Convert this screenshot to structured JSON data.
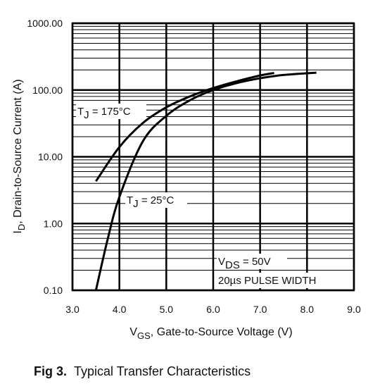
{
  "chart_data": {
    "type": "line",
    "xlabel": {
      "main": "V",
      "sub": "GS",
      "rest": ", Gate-to-Source Voltage (V)"
    },
    "ylabel": {
      "main": "I",
      "sub": "D",
      "rest": ", Drain-to-Source Current (A)"
    },
    "caption": {
      "bold": "Fig 3.",
      "text": "Typical Transfer Characteristics"
    },
    "log_y": true,
    "grid": true,
    "xlim": [
      3,
      9
    ],
    "xticks": [
      {
        "value": 3,
        "label": "3.0"
      },
      {
        "value": 4,
        "label": "4.0"
      },
      {
        "value": 5,
        "label": "5.0"
      },
      {
        "value": 6,
        "label": "6.0"
      },
      {
        "value": 7,
        "label": "7.0"
      },
      {
        "value": 8,
        "label": "8.0"
      },
      {
        "value": 9,
        "label": "9.0"
      }
    ],
    "ylim": [
      0.1,
      1000
    ],
    "yticks": [
      {
        "value": 0.1,
        "label": "0.10"
      },
      {
        "value": 1,
        "label": "1.00"
      },
      {
        "value": 10,
        "label": "10.00"
      },
      {
        "value": 100,
        "label": "100.00"
      },
      {
        "value": 1000,
        "label": "1000.00"
      }
    ],
    "yminor": [
      0.2,
      0.3,
      0.4,
      0.5,
      0.6,
      0.7,
      0.8,
      0.9,
      2,
      3,
      4,
      5,
      6,
      7,
      8,
      9,
      20,
      30,
      40,
      50,
      60,
      70,
      80,
      90,
      200,
      300,
      400,
      500,
      600,
      700,
      800,
      900
    ],
    "series": [
      {
        "color": "#000000",
        "x": [
          3.5,
          4.0,
          4.5,
          5.0,
          5.5,
          6.0,
          6.5,
          7.0,
          7.3
        ],
        "values": [
          4.3,
          14,
          32,
          55,
          80,
          107,
          135,
          165,
          180
        ]
      },
      {
        "color": "#000000",
        "x": [
          3.5,
          3.75,
          4.0,
          4.5,
          5.0,
          5.5,
          6.0,
          6.5,
          7.0,
          7.5,
          8.2
        ],
        "values": [
          0.1,
          0.58,
          2.5,
          17,
          41,
          70,
          100,
          127,
          150,
          168,
          182
        ]
      }
    ],
    "annotations": [
      {
        "main": "T",
        "sub": "J",
        "rest": " = 175°C"
      },
      {
        "main": "T",
        "sub": "J",
        "rest": " = 25°C"
      },
      {
        "main": "V",
        "sub": "DS",
        "rest": " = 50V"
      },
      {
        "text": "20µs PULSE WIDTH"
      }
    ]
  }
}
